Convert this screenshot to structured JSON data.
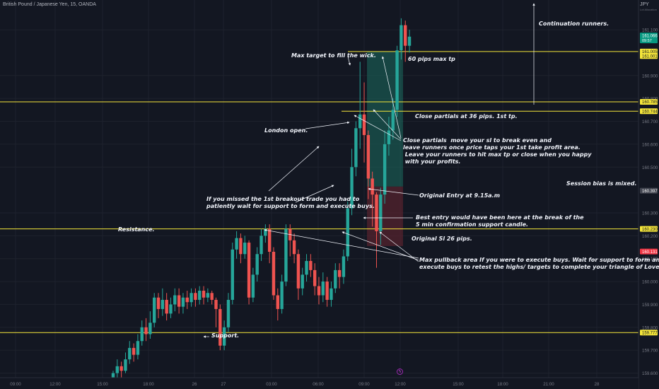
{
  "header": {
    "title": "British Pound / Japanese Yen, 15, OANDA",
    "currency": "JPY",
    "currency_sub": "Lot Allocation"
  },
  "colors": {
    "background": "#131722",
    "grid": "#1e222d",
    "up": "#26a69a",
    "down": "#ef5350",
    "level_line": "#f5e63a",
    "level_label_bg": "#f5e63a",
    "annotation": "#f0f3fa",
    "long_profit_zone": "#1c6b5e",
    "long_loss_zone": "#5e2330",
    "current_price_bg": "#089981",
    "session_label_bg": "#f23645",
    "neutral_label_bg": "#434651"
  },
  "chart_data": {
    "type": "candlestick",
    "symbol": "GBPJPY",
    "timeframe": "15",
    "ylim": [
      159.58,
      161.23
    ],
    "y_ticks": [
      "161.100",
      "160.900",
      "160.800",
      "160.700",
      "160.600",
      "160.500",
      "160.300",
      "160.200",
      "160.100",
      "160.000",
      "159.900",
      "159.800",
      "159.700",
      "159.600"
    ],
    "x_ticks": [
      "09:00",
      "12:00",
      "15:00",
      "18:00",
      "26",
      "27",
      "03:00",
      "06:00",
      "09:00",
      "12:00",
      "15:00",
      "18:00",
      "21:00",
      "28"
    ],
    "price_labels": [
      {
        "text": "161.066",
        "sub": "09:57",
        "price": 161.066,
        "style": "current"
      },
      {
        "text": "161.005",
        "price": 161.005,
        "style": "level"
      },
      {
        "text": "161.001",
        "price": 160.985,
        "style": "level"
      },
      {
        "text": "160.785",
        "price": 160.785,
        "style": "level"
      },
      {
        "text": "160.744",
        "price": 160.744,
        "style": "level"
      },
      {
        "text": "160.397",
        "price": 160.397,
        "style": "neutral"
      },
      {
        "text": "160.230",
        "price": 160.23,
        "style": "level"
      },
      {
        "text": "160.131",
        "price": 160.131,
        "style": "session"
      },
      {
        "text": "159.777",
        "price": 159.777,
        "style": "level"
      }
    ],
    "horizontal_levels": [
      161.005,
      160.785,
      160.744,
      160.23,
      159.777
    ],
    "position": {
      "entry": 160.415,
      "target": 161.005,
      "stop": 160.155
    },
    "candles": [
      [
        159.56,
        159.6,
        159.55,
        159.61
      ],
      [
        159.6,
        159.63,
        159.57,
        159.66
      ],
      [
        159.63,
        159.61,
        159.58,
        159.65
      ],
      [
        159.61,
        159.66,
        159.6,
        159.69
      ],
      [
        159.66,
        159.71,
        159.64,
        159.74
      ],
      [
        159.71,
        159.68,
        159.65,
        159.73
      ],
      [
        159.68,
        159.74,
        159.66,
        159.77
      ],
      [
        159.74,
        159.8,
        159.72,
        159.83
      ],
      [
        159.8,
        159.77,
        159.74,
        159.84
      ],
      [
        159.77,
        159.82,
        159.75,
        159.87
      ],
      [
        159.82,
        159.93,
        159.8,
        159.95
      ],
      [
        159.93,
        159.88,
        159.84,
        159.95
      ],
      [
        159.88,
        159.92,
        159.85,
        159.97
      ],
      [
        159.92,
        159.86,
        159.83,
        159.95
      ],
      [
        159.86,
        159.9,
        159.84,
        159.93
      ],
      [
        159.9,
        159.94,
        159.87,
        159.97
      ],
      [
        159.94,
        159.89,
        159.86,
        159.97
      ],
      [
        159.89,
        159.93,
        159.86,
        159.95
      ],
      [
        159.93,
        159.91,
        159.88,
        159.96
      ],
      [
        159.91,
        159.95,
        159.89,
        159.97
      ],
      [
        159.95,
        159.92,
        159.89,
        159.97
      ],
      [
        159.92,
        159.96,
        159.9,
        159.98
      ],
      [
        159.96,
        159.93,
        159.9,
        159.98
      ],
      [
        159.93,
        159.95,
        159.91,
        159.97
      ],
      [
        159.95,
        159.92,
        159.9,
        159.96
      ],
      [
        159.92,
        159.88,
        159.8,
        159.93
      ],
      [
        159.88,
        159.72,
        159.7,
        159.9
      ],
      [
        159.72,
        159.8,
        159.7,
        159.83
      ],
      [
        159.8,
        159.92,
        159.78,
        159.95
      ],
      [
        159.92,
        160.14,
        159.9,
        160.17
      ],
      [
        160.14,
        160.19,
        160.1,
        160.22
      ],
      [
        160.19,
        160.12,
        160.08,
        160.21
      ],
      [
        160.12,
        160.17,
        160.1,
        160.2
      ],
      [
        160.17,
        159.93,
        159.9,
        160.18
      ],
      [
        159.93,
        160.03,
        159.91,
        160.06
      ],
      [
        160.03,
        160.12,
        160.0,
        160.15
      ],
      [
        160.12,
        160.2,
        160.09,
        160.23
      ],
      [
        160.2,
        160.23,
        160.17,
        160.25
      ],
      [
        160.23,
        160.13,
        160.08,
        160.25
      ],
      [
        160.13,
        159.94,
        159.92,
        160.15
      ],
      [
        159.94,
        159.88,
        159.83,
        159.97
      ],
      [
        159.88,
        160.0,
        159.86,
        160.03
      ],
      [
        160.0,
        160.23,
        159.98,
        160.25
      ],
      [
        160.23,
        160.18,
        160.11,
        160.25
      ],
      [
        160.18,
        160.12,
        160.08,
        160.21
      ],
      [
        160.12,
        159.97,
        159.92,
        160.14
      ],
      [
        159.97,
        160.03,
        159.94,
        160.06
      ],
      [
        160.03,
        160.09,
        160.0,
        160.12
      ],
      [
        160.09,
        160.05,
        160.02,
        160.12
      ],
      [
        160.05,
        159.98,
        159.94,
        160.08
      ],
      [
        159.98,
        159.94,
        159.9,
        160.02
      ],
      [
        159.94,
        160.0,
        159.91,
        160.04
      ],
      [
        160.0,
        159.92,
        159.89,
        160.02
      ],
      [
        159.92,
        159.97,
        159.89,
        160.0
      ],
      [
        159.97,
        160.05,
        159.95,
        160.08
      ],
      [
        160.05,
        160.02,
        159.97,
        160.08
      ],
      [
        160.02,
        160.11,
        159.99,
        160.14
      ],
      [
        160.11,
        160.32,
        160.09,
        160.35
      ],
      [
        160.32,
        160.5,
        160.29,
        160.58
      ],
      [
        160.5,
        160.67,
        160.46,
        160.7
      ],
      [
        160.67,
        160.73,
        160.58,
        160.96
      ],
      [
        160.73,
        160.64,
        160.52,
        160.87
      ],
      [
        160.64,
        160.45,
        160.36,
        160.66
      ],
      [
        160.45,
        160.38,
        160.24,
        160.48
      ],
      [
        160.38,
        160.22,
        160.06,
        160.39
      ],
      [
        160.22,
        160.38,
        160.16,
        160.41
      ],
      [
        160.38,
        160.6,
        160.34,
        160.66
      ],
      [
        160.6,
        160.66,
        160.55,
        160.72
      ],
      [
        160.66,
        160.75,
        160.62,
        160.8
      ],
      [
        160.75,
        161.01,
        160.72,
        161.03
      ],
      [
        161.01,
        161.12,
        160.97,
        161.15
      ],
      [
        161.12,
        161.03,
        160.96,
        161.14
      ],
      [
        161.03,
        161.07,
        161.0,
        161.1
      ]
    ]
  },
  "annotations": {
    "max_target": "Max target to fill the wick.",
    "pips_60": "60 pips max tp",
    "continuation": "Continuation runners.",
    "close_36": "Close partials at 36 pips. 1st tp.",
    "london": "London open.",
    "close_partials_1": "Close partials  move your sl to break even and",
    "close_partials_2": "leave runners once price taps your 1st take profit area.",
    "close_partials_3": " Leave your runners to hit max tp or close when you happy",
    "close_partials_4": " with your profits.",
    "session_bias": "Session bias is mixed.",
    "original_entry": "Original Entry at 9.15a.m",
    "missed_1": "If you missed the 1st breakout trade you had to",
    "missed_2": "patiently wait for support to form and execute buys.",
    "best_entry_1": "Best entry would have been here at the break of the",
    "best_entry_2": "5 min confirmation support candle.",
    "resistance": "Resistance.",
    "original_sl": "Original Sl 26 pips.",
    "max_pullback_1": "Max pullback area If you were to execute buys. Wait for support to form and",
    "max_pullback_2": "execute buys to retest the highs/ targets to complete your triangle of Love.",
    "support": "Support."
  }
}
